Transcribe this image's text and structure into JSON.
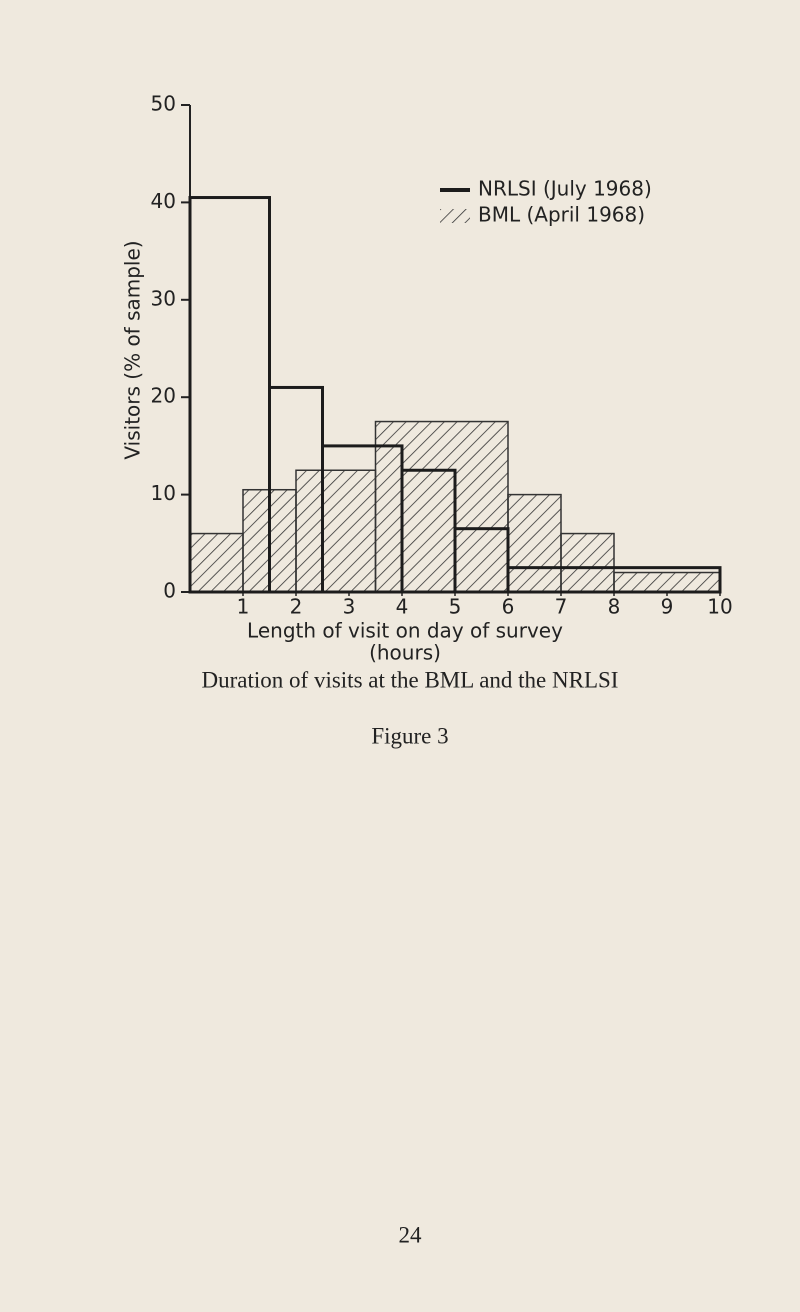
{
  "chart_data": {
    "type": "histogram",
    "caption": "Duration of visits at the BML and the NRLSI",
    "figure_label": "Figure 3",
    "page_number": "24",
    "x_label": "Length of visit on day of survey",
    "x_unit": "(hours)",
    "y_label": "Visitors (% of sample)",
    "xlim": [
      0,
      10
    ],
    "ylim": [
      0,
      50
    ],
    "xticks": [
      1,
      2,
      3,
      4,
      5,
      6,
      7,
      8,
      9,
      10
    ],
    "yticks": [
      0,
      10,
      20,
      30,
      40,
      50
    ],
    "legend": "upper right",
    "series": [
      {
        "name": "NRLSI (July 1968)",
        "color": "#1c1c1c",
        "pattern": "solid",
        "bins": [
          0,
          1.5,
          2.5,
          4,
          5,
          6,
          10
        ],
        "values": [
          40.5,
          21,
          15,
          12.5,
          6.5,
          2.5
        ]
      },
      {
        "name": "BML (April 1968)",
        "color": "#333333",
        "pattern": "hatch",
        "bins": [
          0,
          1,
          2,
          3.5,
          6,
          7,
          8,
          10
        ],
        "values": [
          6,
          10.5,
          12.5,
          17.5,
          10,
          6,
          2
        ]
      }
    ]
  }
}
